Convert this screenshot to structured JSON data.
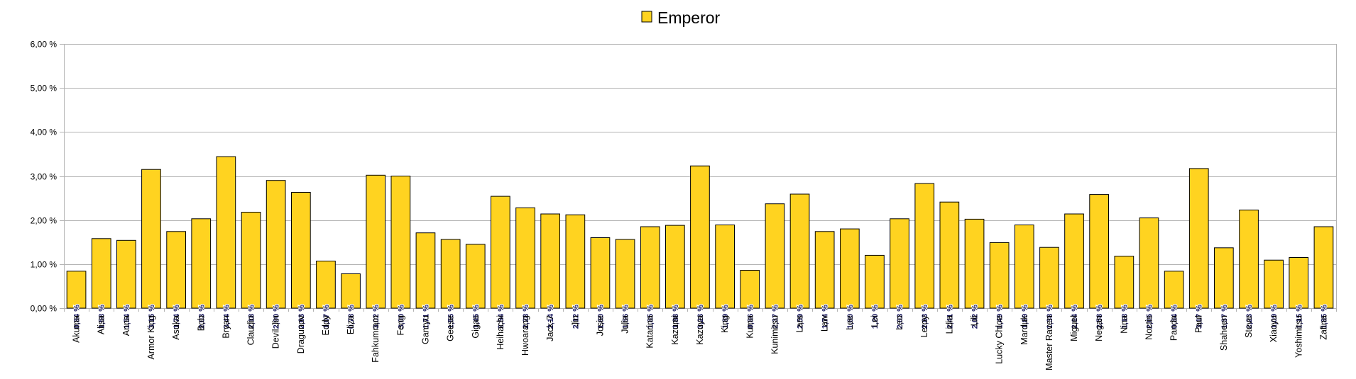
{
  "chart_data": {
    "type": "bar",
    "legend": {
      "position": "top-center"
    },
    "series": [
      {
        "name": "Emperor",
        "color": "#ffd320",
        "values": [
          0.84,
          1.58,
          1.54,
          3.15,
          1.74,
          2.03,
          3.44,
          2.18,
          2.9,
          2.63,
          1.07,
          0.78,
          3.02,
          3.0,
          1.71,
          1.56,
          1.45,
          2.54,
          2.28,
          2.14,
          2.12,
          1.6,
          1.56,
          1.85,
          1.88,
          3.23,
          1.89,
          0.86,
          2.37,
          2.59,
          1.74,
          1.8,
          1.2,
          2.03,
          2.83,
          2.41,
          2.02,
          1.49,
          1.89,
          1.38,
          2.14,
          2.58,
          1.18,
          2.05,
          0.84,
          3.17,
          1.37,
          2.23,
          1.09,
          1.15,
          1.85
        ],
        "labels": [
          "0,84 %",
          "1,58 %",
          "1,54 %",
          "3,15 %",
          "1,74 %",
          "2,03 %",
          "3,44 %",
          "2,18 %",
          "2,90 %",
          "2,63 %",
          "1,07 %",
          "0,78 %",
          "3,02 %",
          "3,00 %",
          "1,71 %",
          "1,56 %",
          "1,45 %",
          "2,54 %",
          "2,28 %",
          "2,14 %",
          "2,12 %",
          "1,60 %",
          "1,56 %",
          "1,85 %",
          "1,88 %",
          "3,23 %",
          "1,89 %",
          "0,86 %",
          "2,37 %",
          "2,59 %",
          "1,74 %",
          "1,80 %",
          "1,20 %",
          "2,03 %",
          "2,83 %",
          "2,41 %",
          "2,02 %",
          "1,49 %",
          "1,89 %",
          "1,38 %",
          "2,14 %",
          "2,58 %",
          "1,18 %",
          "2,05 %",
          "0,84 %",
          "3,17 %",
          "1,37 %",
          "2,23 %",
          "1,09 %",
          "1,15 %",
          "1,85 %"
        ]
      }
    ],
    "categories": [
      "Akuma",
      "Alisa",
      "Anna",
      "Armor King",
      "Asuka",
      "Bob",
      "Bryan",
      "Claudio",
      "Devil Jin",
      "Dragunov",
      "Eddy",
      "Eliza",
      "Fahkumram",
      "Feng",
      "Ganryu",
      "Geese",
      "Gigas",
      "Heihachi",
      "Hwoarang",
      "Jack-7",
      "Jin",
      "Josie",
      "Julia",
      "Katarina",
      "Kazumi",
      "Kazuya",
      "King",
      "Kuma",
      "Kunimitsu",
      "Lars",
      "Law",
      "Lee",
      "Lei",
      "Leo",
      "Leroy",
      "Lidia",
      "Lili",
      "Lucky Chloe",
      "Marduk",
      "Master Raven",
      "Miguel",
      "Negan",
      "Nina",
      "Noctis",
      "Panda",
      "Paul",
      "Shaheen",
      "Steve",
      "Xiaoyu",
      "Yoshimitsu",
      "Zafina"
    ],
    "ylim": [
      0,
      6
    ],
    "yticks": [
      0,
      1,
      2,
      3,
      4,
      5,
      6
    ],
    "ytick_labels": [
      "0,00 %",
      "1,00 %",
      "2,00 %",
      "3,00 %",
      "4,00 %",
      "5,00 %",
      "6,00 %"
    ],
    "grid": true,
    "gridline_color": "#b3b3b3",
    "title": "",
    "xlabel": "",
    "ylabel": ""
  }
}
